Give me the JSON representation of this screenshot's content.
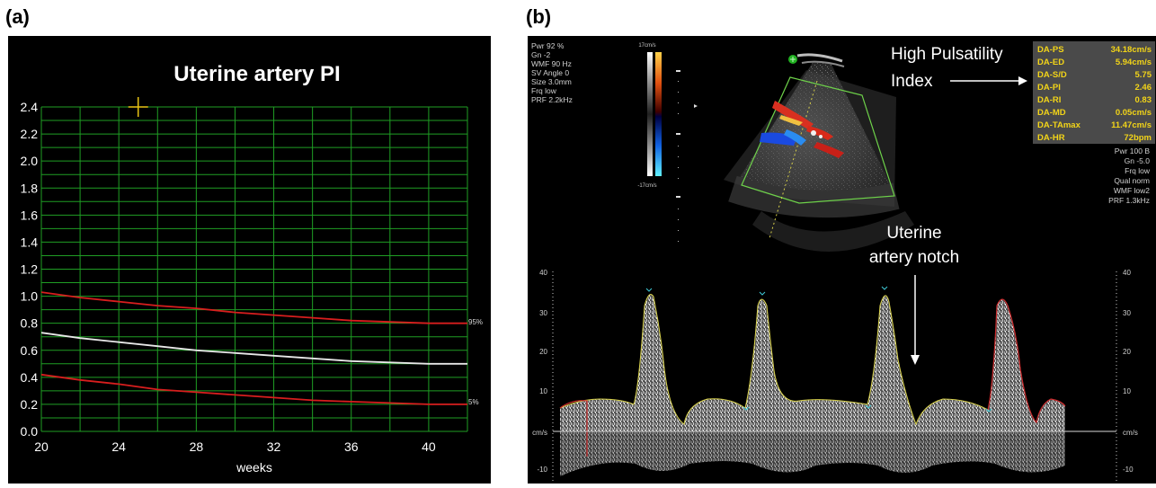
{
  "labels": {
    "panel_a": "(a)",
    "panel_b": "(b)"
  },
  "panel_a": {
    "title": "Uterine artery PI",
    "xlabel": "weeks",
    "pct_high": "95%",
    "pct_low": "5%"
  },
  "chart_data": {
    "type": "line",
    "title": "Uterine artery PI",
    "xlabel": "weeks",
    "ylabel": "",
    "xlim": [
      20,
      42
    ],
    "ylim": [
      0.0,
      2.4
    ],
    "x_ticks": [
      "20",
      "24",
      "28",
      "32",
      "36",
      "40"
    ],
    "y_ticks": [
      "0.0",
      "0.2",
      "0.4",
      "0.6",
      "0.8",
      "1.0",
      "1.2",
      "1.4",
      "1.6",
      "1.8",
      "2.0",
      "2.2",
      "2.4"
    ],
    "grid": true,
    "x": [
      20,
      22,
      24,
      26,
      28,
      30,
      32,
      34,
      36,
      38,
      40,
      42
    ],
    "series": [
      {
        "name": "95%",
        "color": "#d81e1e",
        "values": [
          1.03,
          0.99,
          0.96,
          0.93,
          0.91,
          0.88,
          0.86,
          0.84,
          0.82,
          0.81,
          0.8,
          0.8
        ]
      },
      {
        "name": "",
        "color": "#e8e8e8",
        "values": [
          0.73,
          0.69,
          0.66,
          0.63,
          0.6,
          0.58,
          0.56,
          0.54,
          0.52,
          0.51,
          0.5,
          0.5
        ]
      },
      {
        "name": "5%",
        "color": "#d81e1e",
        "values": [
          0.42,
          0.38,
          0.35,
          0.31,
          0.29,
          0.27,
          0.25,
          0.23,
          0.22,
          0.21,
          0.2,
          0.2
        ]
      }
    ],
    "marker": {
      "x": 25,
      "y": 2.4,
      "color": "#e8c414"
    }
  },
  "panel_b": {
    "settings_left": [
      "Pwr 92 %",
      "Gn  -2",
      "WMF 90 Hz",
      "SV Angle  0",
      "Size  3.0mm",
      "Frq low",
      "PRF  2.2kHz"
    ],
    "colorbar_top": "17cm/s",
    "colorbar_bottom": "-17cm/s",
    "measurements": [
      {
        "label": "DA-PS",
        "value": "34.18cm/s"
      },
      {
        "label": "DA-ED",
        "value": "5.94cm/s"
      },
      {
        "label": "DA-S/D",
        "value": "5.75"
      },
      {
        "label": "DA-PI",
        "value": "2.46"
      },
      {
        "label": "DA-RI",
        "value": "0.83"
      },
      {
        "label": "DA-MD",
        "value": "0.05cm/s"
      },
      {
        "label": "DA-TAmax",
        "value": "11.47cm/s"
      },
      {
        "label": "DA-HR",
        "value": "72bpm"
      }
    ],
    "settings_right": [
      "Pwr 100 B",
      "Gn -5.0",
      "Frq low",
      "Qual norm",
      "WMF low2",
      "PRF  1.3kHz"
    ],
    "annotation_pi_line1": "High Pulsatility",
    "annotation_pi_line2": "Index",
    "annotation_notch_line1": "Uterine",
    "annotation_notch_line2": "artery notch",
    "doppler_axis": {
      "unit": "cm/s",
      "ticks": [
        "40",
        "30",
        "20",
        "10",
        "-10"
      ]
    },
    "colors": {
      "cyan_marker": "#3fc9d6",
      "yellow_text": "#f2d418",
      "trace_yellow": "#d8d14a",
      "trace_red": "#c8282a"
    }
  }
}
